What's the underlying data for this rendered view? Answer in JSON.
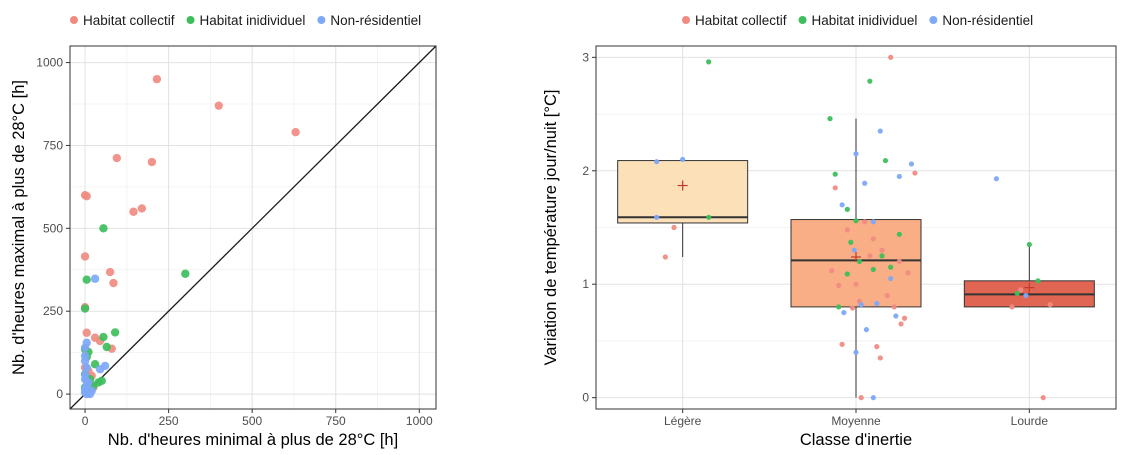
{
  "chart_data": [
    {
      "type": "scatter",
      "legend": [
        "Habitat collectif",
        "Habitat inidividuel",
        "Non-résidentiel"
      ],
      "legend_placement": "top",
      "xlabel": "Nb. d'heures minimal à plus de 28°C [h]",
      "ylabel": "Nb. d'heures maximal à plus de 28°C [h]",
      "xlim": [
        -45,
        1050
      ],
      "ylim": [
        -45,
        1050
      ],
      "x_ticks": [
        "0",
        "250",
        "500",
        "750",
        "1000"
      ],
      "y_ticks": [
        "0",
        "250",
        "500",
        "750",
        "1000"
      ],
      "grid": true,
      "reference_line": "y = x",
      "series": [
        {
          "name": "Habitat collectif",
          "color": "#F08B82",
          "points": [
            [
              215,
              950
            ],
            [
              400,
              870
            ],
            [
              630,
              790
            ],
            [
              95,
              712
            ],
            [
              200,
              700
            ],
            [
              170,
              560
            ],
            [
              145,
              550
            ],
            [
              0,
              600
            ],
            [
              5,
              597
            ],
            [
              0,
              415
            ],
            [
              75,
              368
            ],
            [
              85,
              335
            ],
            [
              0,
              262
            ],
            [
              5,
              185
            ],
            [
              30,
              170
            ],
            [
              45,
              160
            ],
            [
              80,
              137
            ],
            [
              0,
              80
            ],
            [
              10,
              70
            ],
            [
              20,
              55
            ],
            [
              5,
              40
            ],
            [
              15,
              30
            ],
            [
              25,
              20
            ],
            [
              10,
              10
            ]
          ]
        },
        {
          "name": "Habitat inidividuel",
          "color": "#3DBE5C",
          "points": [
            [
              55,
              500
            ],
            [
              300,
              363
            ],
            [
              5,
              345
            ],
            [
              0,
              258
            ],
            [
              90,
              186
            ],
            [
              55,
              172
            ],
            [
              65,
              142
            ],
            [
              0,
              135
            ],
            [
              10,
              127
            ],
            [
              5,
              112
            ],
            [
              30,
              90
            ],
            [
              0,
              60
            ],
            [
              15,
              45
            ],
            [
              40,
              35
            ],
            [
              25,
              25
            ],
            [
              50,
              40
            ],
            [
              0,
              20
            ],
            [
              10,
              5
            ]
          ]
        },
        {
          "name": "Non-résidentiel",
          "color": "#7EA8F8",
          "points": [
            [
              30,
              348
            ],
            [
              5,
              155
            ],
            [
              0,
              140
            ],
            [
              0,
              115
            ],
            [
              0,
              100
            ],
            [
              5,
              80
            ],
            [
              0,
              60
            ],
            [
              60,
              85
            ],
            [
              45,
              75
            ],
            [
              0,
              45
            ],
            [
              10,
              35
            ],
            [
              5,
              25
            ],
            [
              0,
              15
            ],
            [
              20,
              10
            ],
            [
              0,
              5
            ],
            [
              15,
              0
            ],
            [
              5,
              0
            ]
          ]
        }
      ]
    },
    {
      "type": "box",
      "legend": [
        "Habitat collectif",
        "Habitat inidividuel",
        "Non-résidentiel"
      ],
      "legend_placement": "top",
      "xlabel": "Classe d'inertie",
      "ylabel": "Variation de température jour/nuit [°C]",
      "categories": [
        "Légère",
        "Moyenne",
        "Lourde"
      ],
      "ylim": [
        -0.1,
        3.1
      ],
      "y_ticks": [
        "0",
        "1",
        "2",
        "3"
      ],
      "grid": true,
      "boxes": [
        {
          "category": "Légère",
          "q1": 1.54,
          "median": 1.59,
          "q3": 2.09,
          "whisker_low": 1.24,
          "whisker_high": 2.09,
          "mean": 1.87,
          "fill": "#FCE0B8"
        },
        {
          "category": "Moyenne",
          "q1": 0.8,
          "median": 1.21,
          "q3": 1.57,
          "whisker_low": 0.0,
          "whisker_high": 2.46,
          "mean": 1.24,
          "fill": "#F9AE85"
        },
        {
          "category": "Lourde",
          "q1": 0.8,
          "median": 0.91,
          "q3": 1.03,
          "whisker_low": 0.8,
          "whisker_high": 1.35,
          "mean": 0.97,
          "fill": "#E06552"
        }
      ],
      "series": [
        {
          "name": "Habitat collectif",
          "color": "#F08B82",
          "points": [
            [
              0.95,
              1.5
            ],
            [
              0.9,
              1.24
            ],
            [
              2.2,
              3.0
            ],
            [
              2.0,
              1.0
            ],
            [
              2.05,
              1.55
            ],
            [
              1.95,
              1.48
            ],
            [
              2.1,
              1.4
            ],
            [
              2.15,
              1.3
            ],
            [
              2.25,
              1.2
            ],
            [
              2.3,
              1.1
            ],
            [
              1.9,
              0.99
            ],
            [
              2.18,
              0.9
            ],
            [
              2.22,
              0.8
            ],
            [
              2.28,
              0.7
            ],
            [
              2.26,
              0.65
            ],
            [
              2.12,
              0.45
            ],
            [
              2.14,
              0.35
            ],
            [
              1.92,
              0.47
            ],
            [
              2.34,
              1.98
            ],
            [
              1.88,
              1.85
            ],
            [
              2.08,
              1.25
            ],
            [
              2.02,
              0.85
            ],
            [
              1.86,
              1.12
            ],
            [
              2.03,
              0.0
            ],
            [
              1.98,
              0.79
            ],
            [
              2.9,
              0.8
            ],
            [
              3.12,
              0.82
            ],
            [
              3.08,
              0.0
            ],
            [
              2.95,
              0.95
            ]
          ]
        },
        {
          "name": "Habitat inidividuel",
          "color": "#3DBE5C",
          "points": [
            [
              1.15,
              2.96
            ],
            [
              1.15,
              1.59
            ],
            [
              2.08,
              2.79
            ],
            [
              1.85,
              2.46
            ],
            [
              1.88,
              1.97
            ],
            [
              1.95,
              1.66
            ],
            [
              2.0,
              1.56
            ],
            [
              2.25,
              1.44
            ],
            [
              2.2,
              1.15
            ],
            [
              2.1,
              1.13
            ],
            [
              2.15,
              1.25
            ],
            [
              1.97,
              1.37
            ],
            [
              2.02,
              1.2
            ],
            [
              1.9,
              0.8
            ],
            [
              2.17,
              2.09
            ],
            [
              1.95,
              1.09
            ],
            [
              3.0,
              1.35
            ],
            [
              3.05,
              1.03
            ],
            [
              2.93,
              0.92
            ]
          ]
        },
        {
          "name": "Non-résidentiel",
          "color": "#7EA8F8",
          "points": [
            [
              0.85,
              2.08
            ],
            [
              1.0,
              2.1
            ],
            [
              0.85,
              1.59
            ],
            [
              2.0,
              2.15
            ],
            [
              2.14,
              2.35
            ],
            [
              2.25,
              1.95
            ],
            [
              2.32,
              2.06
            ],
            [
              2.05,
              1.89
            ],
            [
              1.92,
              1.7
            ],
            [
              2.1,
              1.55
            ],
            [
              2.2,
              1.05
            ],
            [
              2.12,
              0.83
            ],
            [
              2.03,
              0.82
            ],
            [
              1.93,
              0.75
            ],
            [
              2.06,
              0.6
            ],
            [
              2.0,
              0.4
            ],
            [
              2.1,
              0.0
            ],
            [
              2.23,
              0.72
            ],
            [
              1.99,
              1.3
            ],
            [
              2.81,
              1.93
            ],
            [
              2.98,
              0.9
            ]
          ]
        }
      ]
    }
  ]
}
